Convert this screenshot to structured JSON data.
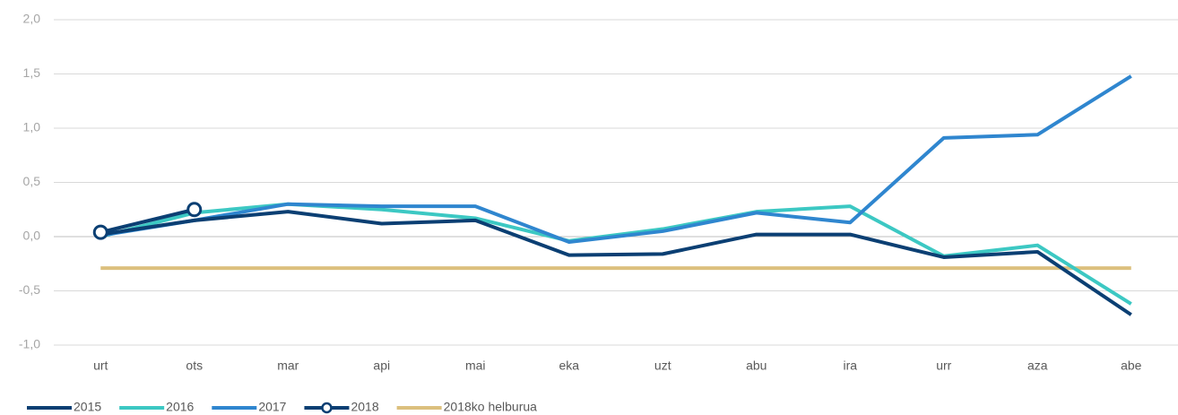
{
  "chart_data": {
    "type": "line",
    "categories": [
      "urt",
      "ots",
      "mar",
      "api",
      "mai",
      "eka",
      "uzt",
      "abu",
      "ira",
      "urr",
      "aza",
      "abe"
    ],
    "series": [
      {
        "name": "2015",
        "color": "#0b3f73",
        "values": [
          0.02,
          0.15,
          0.23,
          0.12,
          0.15,
          -0.17,
          -0.16,
          0.02,
          0.02,
          -0.19,
          -0.14,
          -0.72
        ]
      },
      {
        "name": "2016",
        "color": "#3cc8c3",
        "values": [
          0.0,
          0.22,
          0.3,
          0.25,
          0.17,
          -0.04,
          0.07,
          0.23,
          0.28,
          -0.18,
          -0.08,
          -0.62
        ]
      },
      {
        "name": "2017",
        "color": "#2f86cf",
        "values": [
          0.01,
          0.15,
          0.3,
          0.28,
          0.28,
          -0.05,
          0.05,
          0.22,
          0.13,
          0.91,
          0.94,
          1.48
        ]
      },
      {
        "name": "2018",
        "color": "#0b3f73",
        "marker": true,
        "values": [
          0.04,
          0.25,
          null,
          null,
          null,
          null,
          null,
          null,
          null,
          null,
          null,
          null
        ]
      },
      {
        "name": "2018ko helburua",
        "color": "#dcc07e",
        "values": [
          -0.29,
          -0.29,
          -0.29,
          -0.29,
          -0.29,
          -0.29,
          -0.29,
          -0.29,
          -0.29,
          -0.29,
          -0.29,
          -0.29
        ]
      }
    ],
    "ylim": [
      -1.0,
      2.0
    ],
    "yticks": [
      {
        "value": -1.0,
        "label": "-1,0"
      },
      {
        "value": -0.5,
        "label": "-0,5"
      },
      {
        "value": 0.0,
        "label": "0,0"
      },
      {
        "value": 0.5,
        "label": "0,5"
      },
      {
        "value": 1.0,
        "label": "1,0"
      },
      {
        "value": 1.5,
        "label": "1,5"
      },
      {
        "value": 2.0,
        "label": "2,0"
      }
    ],
    "grid": true,
    "legend": "bottom"
  }
}
